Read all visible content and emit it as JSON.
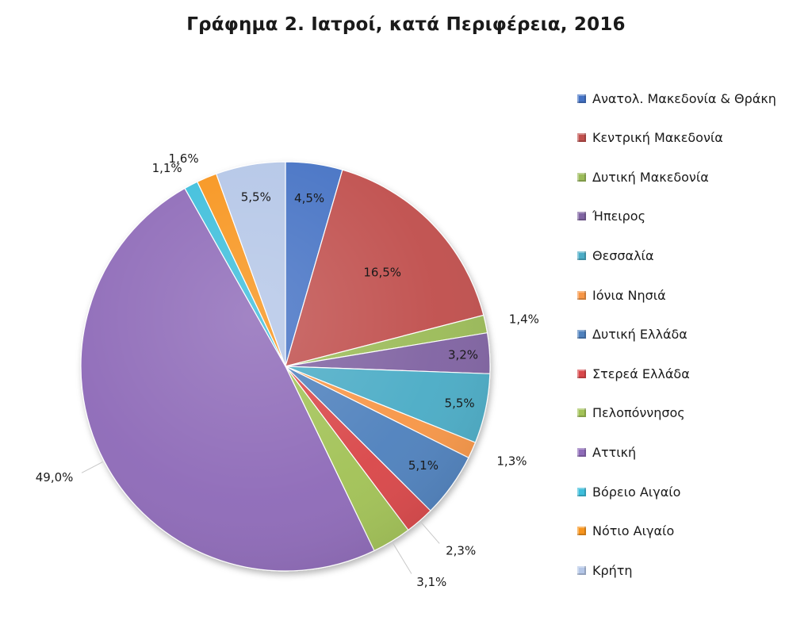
{
  "chart_data": {
    "type": "pie",
    "title": "Γράφημα 2. Ιατροί, κατά Περιφέρεια, 2016",
    "legend_position": "right",
    "start_angle": "12 o'clock",
    "direction": "clockwise",
    "slices": [
      {
        "name": "Ανατολ. Μακεδονία & Θράκη",
        "value": 4.5,
        "label": "4,5%",
        "color": "#4472C4"
      },
      {
        "name": "Κεντρική Μακεδονία",
        "value": 16.5,
        "label": "16,5%",
        "color": "#C0504D"
      },
      {
        "name": "Δυτική Μακεδονία",
        "value": 1.4,
        "label": "1,4%",
        "color": "#9BBB59"
      },
      {
        "name": "Ήπειρος",
        "value": 3.2,
        "label": "3,2%",
        "color": "#8064A2"
      },
      {
        "name": "Θεσσαλία",
        "value": 5.5,
        "label": "5,5%",
        "color": "#4BACC6"
      },
      {
        "name": "Ιόνια Νησιά",
        "value": 1.3,
        "label": "1,3%",
        "color": "#F79646"
      },
      {
        "name": "Δυτική Ελλάδα",
        "value": 5.1,
        "label": "5,1%",
        "color": "#4F81BD"
      },
      {
        "name": "Στερεά Ελλάδα",
        "value": 2.3,
        "label": "2,3%",
        "color": "#D9474A"
      },
      {
        "name": "Πελοπόννησος",
        "value": 3.1,
        "label": "3,1%",
        "color": "#A2C257"
      },
      {
        "name": "Αττική",
        "value": 49.0,
        "label": "49,0%",
        "color": "#8E6BB8"
      },
      {
        "name": "Βόρειο Αιγαίο",
        "value": 1.1,
        "label": "1,1%",
        "color": "#3DBEDB"
      },
      {
        "name": "Νότιο Αιγαίο",
        "value": 1.6,
        "label": "1,6%",
        "color": "#F7941D"
      },
      {
        "name": "Κρήτη",
        "value": 5.5,
        "label": "5,5%",
        "color": "#B4C6E7"
      }
    ]
  }
}
